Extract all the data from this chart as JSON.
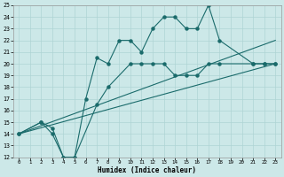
{
  "xlabel": "Humidex (Indice chaleur)",
  "bg_color": "#cce8e8",
  "grid_color": "#afd4d4",
  "line_color": "#1a6b6b",
  "xlim": [
    -0.5,
    23.5
  ],
  "ylim": [
    12,
    25
  ],
  "xticks": [
    0,
    1,
    2,
    3,
    4,
    5,
    6,
    7,
    8,
    9,
    10,
    11,
    12,
    13,
    14,
    15,
    16,
    17,
    18,
    19,
    20,
    21,
    22,
    23
  ],
  "yticks": [
    12,
    13,
    14,
    15,
    16,
    17,
    18,
    19,
    20,
    21,
    22,
    23,
    24,
    25
  ],
  "line1_x": [
    0,
    2,
    3,
    4,
    5,
    6,
    7,
    8,
    9,
    10,
    11,
    12,
    13,
    14,
    15,
    16,
    17,
    18,
    21,
    22,
    23
  ],
  "line1_y": [
    14,
    15,
    14,
    12,
    12,
    17,
    20.5,
    20,
    22,
    22,
    21,
    23,
    24,
    24,
    23,
    23,
    25,
    22,
    20,
    20,
    20
  ],
  "line2_x": [
    0,
    2,
    3,
    4,
    5,
    7,
    8,
    10,
    11,
    12,
    13,
    14,
    15,
    16,
    17,
    18,
    21,
    22,
    23
  ],
  "line2_y": [
    14,
    15,
    14.5,
    12,
    12,
    16.5,
    18,
    20,
    20,
    20,
    20,
    19,
    19,
    19,
    20,
    20,
    20,
    20,
    20
  ],
  "line3_x": [
    0,
    23
  ],
  "line3_y": [
    14,
    22
  ],
  "line4_x": [
    0,
    23
  ],
  "line4_y": [
    14,
    20
  ]
}
